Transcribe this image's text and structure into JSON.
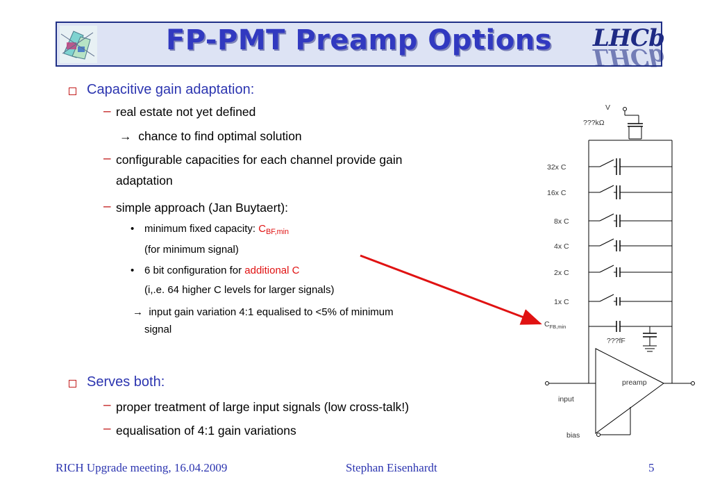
{
  "title": "FP-PMT Preamp Options",
  "logo_right_text": "LHCb",
  "bullets": {
    "b1": "Capacitive gain adaptation:",
    "b1_1": "real estate not yet defined",
    "b1_1a": "chance to find optimal solution",
    "b1_2": "configurable capacities for each channel provide gain",
    "b1_2b": "adaptation",
    "b1_3": "simple approach (Jan Buytaert):",
    "b1_3_1_pre": "minimum fixed capacity: ",
    "b1_3_1_c": "C",
    "b1_3_1_sub": "BF,min",
    "b1_3_1b": "(for minimum signal)",
    "b1_3_2_pre": "6 bit configuration for ",
    "b1_3_2_red": "additional C",
    "b1_3_2b": "(i,.e. 64 higher C levels for larger signals)",
    "b1_4": "input gain variation 4:1 equalised to <5% of minimum",
    "b1_4b": "signal",
    "b2": "Serves both:",
    "b2_1": "proper treatment of large input signals (low cross-talk!)",
    "b2_2": "equalisation of 4:1 gain variations"
  },
  "arrow_symbol": "→",
  "circuit": {
    "v_label": "V",
    "resistor_label": "???kΩ",
    "cap_labels": [
      "32x C",
      "16x C",
      "8x C",
      "4x C",
      "2x C",
      "1x C"
    ],
    "cfb_label": "C",
    "cfb_sub": "FB,min",
    "ff_label": "???fF",
    "preamp_label": "preamp",
    "input_label": "input",
    "bias_label": "bias"
  },
  "footer": {
    "left": "RICH Upgrade meeting, 16.04.2009",
    "center": "Stephan Eisenhardt",
    "page": "5"
  },
  "colors": {
    "title": "#3139c0",
    "title_bar_bg": "#dde3f4",
    "title_bar_border": "#1f2f86",
    "level1_text": "#2c35b0",
    "bullet_red": "#c21b1b",
    "highlight_red": "#e01212",
    "arrow_red": "#e01212"
  }
}
